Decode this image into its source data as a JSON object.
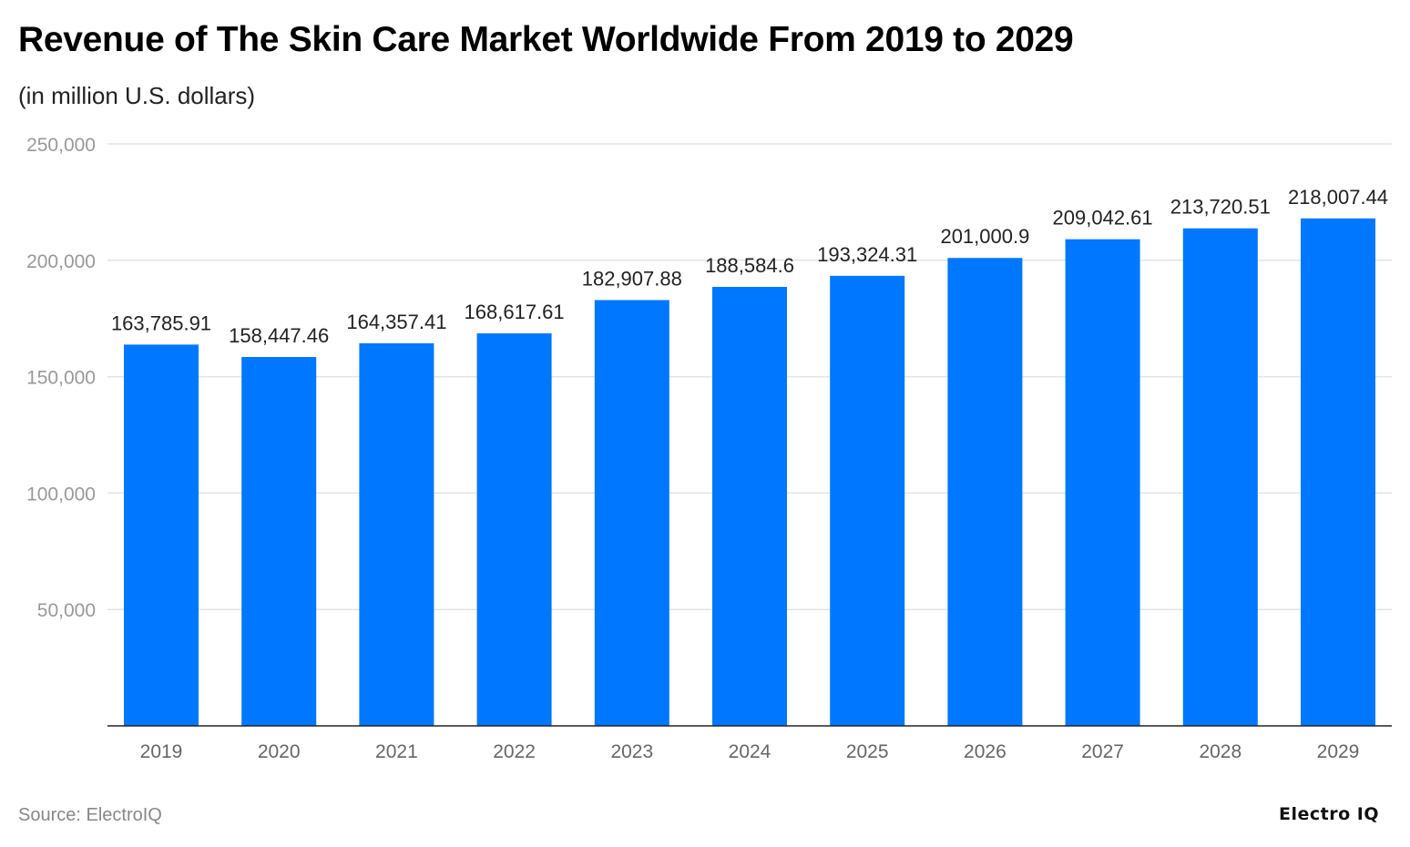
{
  "chart_data": {
    "type": "bar",
    "title": "Revenue of The Skin Care Market Worldwide From 2019 to 2029",
    "subtitle": "(in million U.S. dollars)",
    "categories": [
      "2019",
      "2020",
      "2021",
      "2022",
      "2023",
      "2024",
      "2025",
      "2026",
      "2027",
      "2028",
      "2029"
    ],
    "values": [
      163785.91,
      158447.46,
      164357.41,
      168617.61,
      182907.88,
      188584.6,
      193324.31,
      201000.9,
      209042.61,
      213720.51,
      218007.44
    ],
    "data_labels": [
      "163,785.91",
      "158,447.46",
      "164,357.41",
      "168,617.61",
      "182,907.88",
      "188,584.6",
      "193,324.31",
      "201,000.9",
      "209,042.61",
      "213,720.51",
      "218,007.44"
    ],
    "yticks": [
      50000,
      100000,
      150000,
      200000,
      250000
    ],
    "ytick_labels": [
      "50,000",
      "100,000",
      "150,000",
      "200,000",
      "250,000"
    ],
    "ylim": [
      0,
      250000
    ],
    "xlabel": "",
    "ylabel": "",
    "grid": true,
    "bar_color": "#0077FF"
  },
  "footer": {
    "source": "Source: ElectroIQ",
    "logo": "Electro IQ"
  }
}
